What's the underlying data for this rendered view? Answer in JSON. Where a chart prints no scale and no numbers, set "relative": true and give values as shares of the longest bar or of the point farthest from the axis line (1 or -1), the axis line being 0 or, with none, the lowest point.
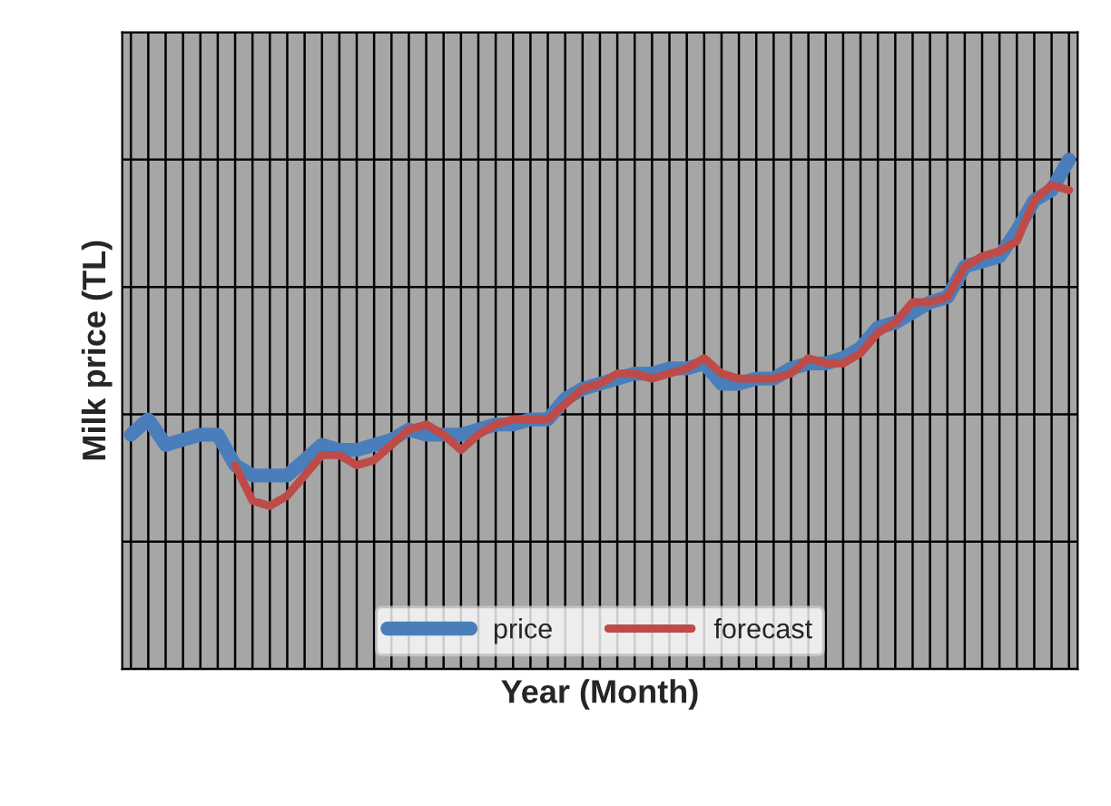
{
  "chart_data": {
    "type": "line",
    "relative": true,
    "xlabel": "Year (Month)",
    "ylabel": "Milk price (TL)",
    "categories": [
      null,
      null,
      null,
      null,
      null,
      null,
      null,
      null,
      null,
      null,
      null,
      null,
      null,
      null,
      null,
      null,
      null,
      null,
      null,
      null,
      null,
      null,
      null,
      null,
      null,
      null,
      null,
      null,
      null,
      null,
      null,
      null,
      null,
      null,
      null,
      null,
      null,
      null,
      null,
      null,
      null,
      null,
      null,
      null,
      null,
      null,
      null,
      null,
      null,
      null,
      null,
      null,
      null,
      null,
      null
    ],
    "series": [
      {
        "name": "price",
        "color": "#4a7ebb",
        "values": [
          0.46,
          0.49,
          0.44,
          0.45,
          0.46,
          0.46,
          0.4,
          0.38,
          0.38,
          0.38,
          0.41,
          0.44,
          0.43,
          0.43,
          0.44,
          0.45,
          0.47,
          0.46,
          0.46,
          0.46,
          0.47,
          0.48,
          0.48,
          0.49,
          0.49,
          0.53,
          0.55,
          0.56,
          0.57,
          0.58,
          0.58,
          0.59,
          0.59,
          0.6,
          0.56,
          0.56,
          0.57,
          0.57,
          0.59,
          0.6,
          0.6,
          0.61,
          0.63,
          0.67,
          0.68,
          0.7,
          0.72,
          0.73,
          0.79,
          0.8,
          0.81,
          0.86,
          0.92,
          0.94,
          1
        ]
      },
      {
        "name": "forecast",
        "color": "#be4b48",
        "values": [
          null,
          null,
          null,
          null,
          null,
          null,
          0.4,
          0.33,
          0.32,
          0.34,
          0.38,
          0.42,
          0.42,
          0.4,
          0.41,
          0.44,
          0.47,
          0.48,
          0.46,
          0.43,
          0.46,
          0.48,
          0.49,
          0.49,
          0.49,
          0.52,
          0.55,
          0.56,
          0.58,
          0.58,
          0.57,
          0.58,
          0.59,
          0.61,
          0.58,
          0.57,
          0.57,
          0.57,
          0.58,
          0.61,
          0.6,
          0.6,
          0.62,
          0.66,
          0.68,
          0.72,
          0.72,
          0.73,
          0.79,
          0.81,
          0.82,
          0.84,
          0.92,
          0.95,
          0.94
        ]
      }
    ],
    "grid": true,
    "legend": "bottom",
    "tick_labels": false,
    "line_style": "solid",
    "marker": "none"
  }
}
